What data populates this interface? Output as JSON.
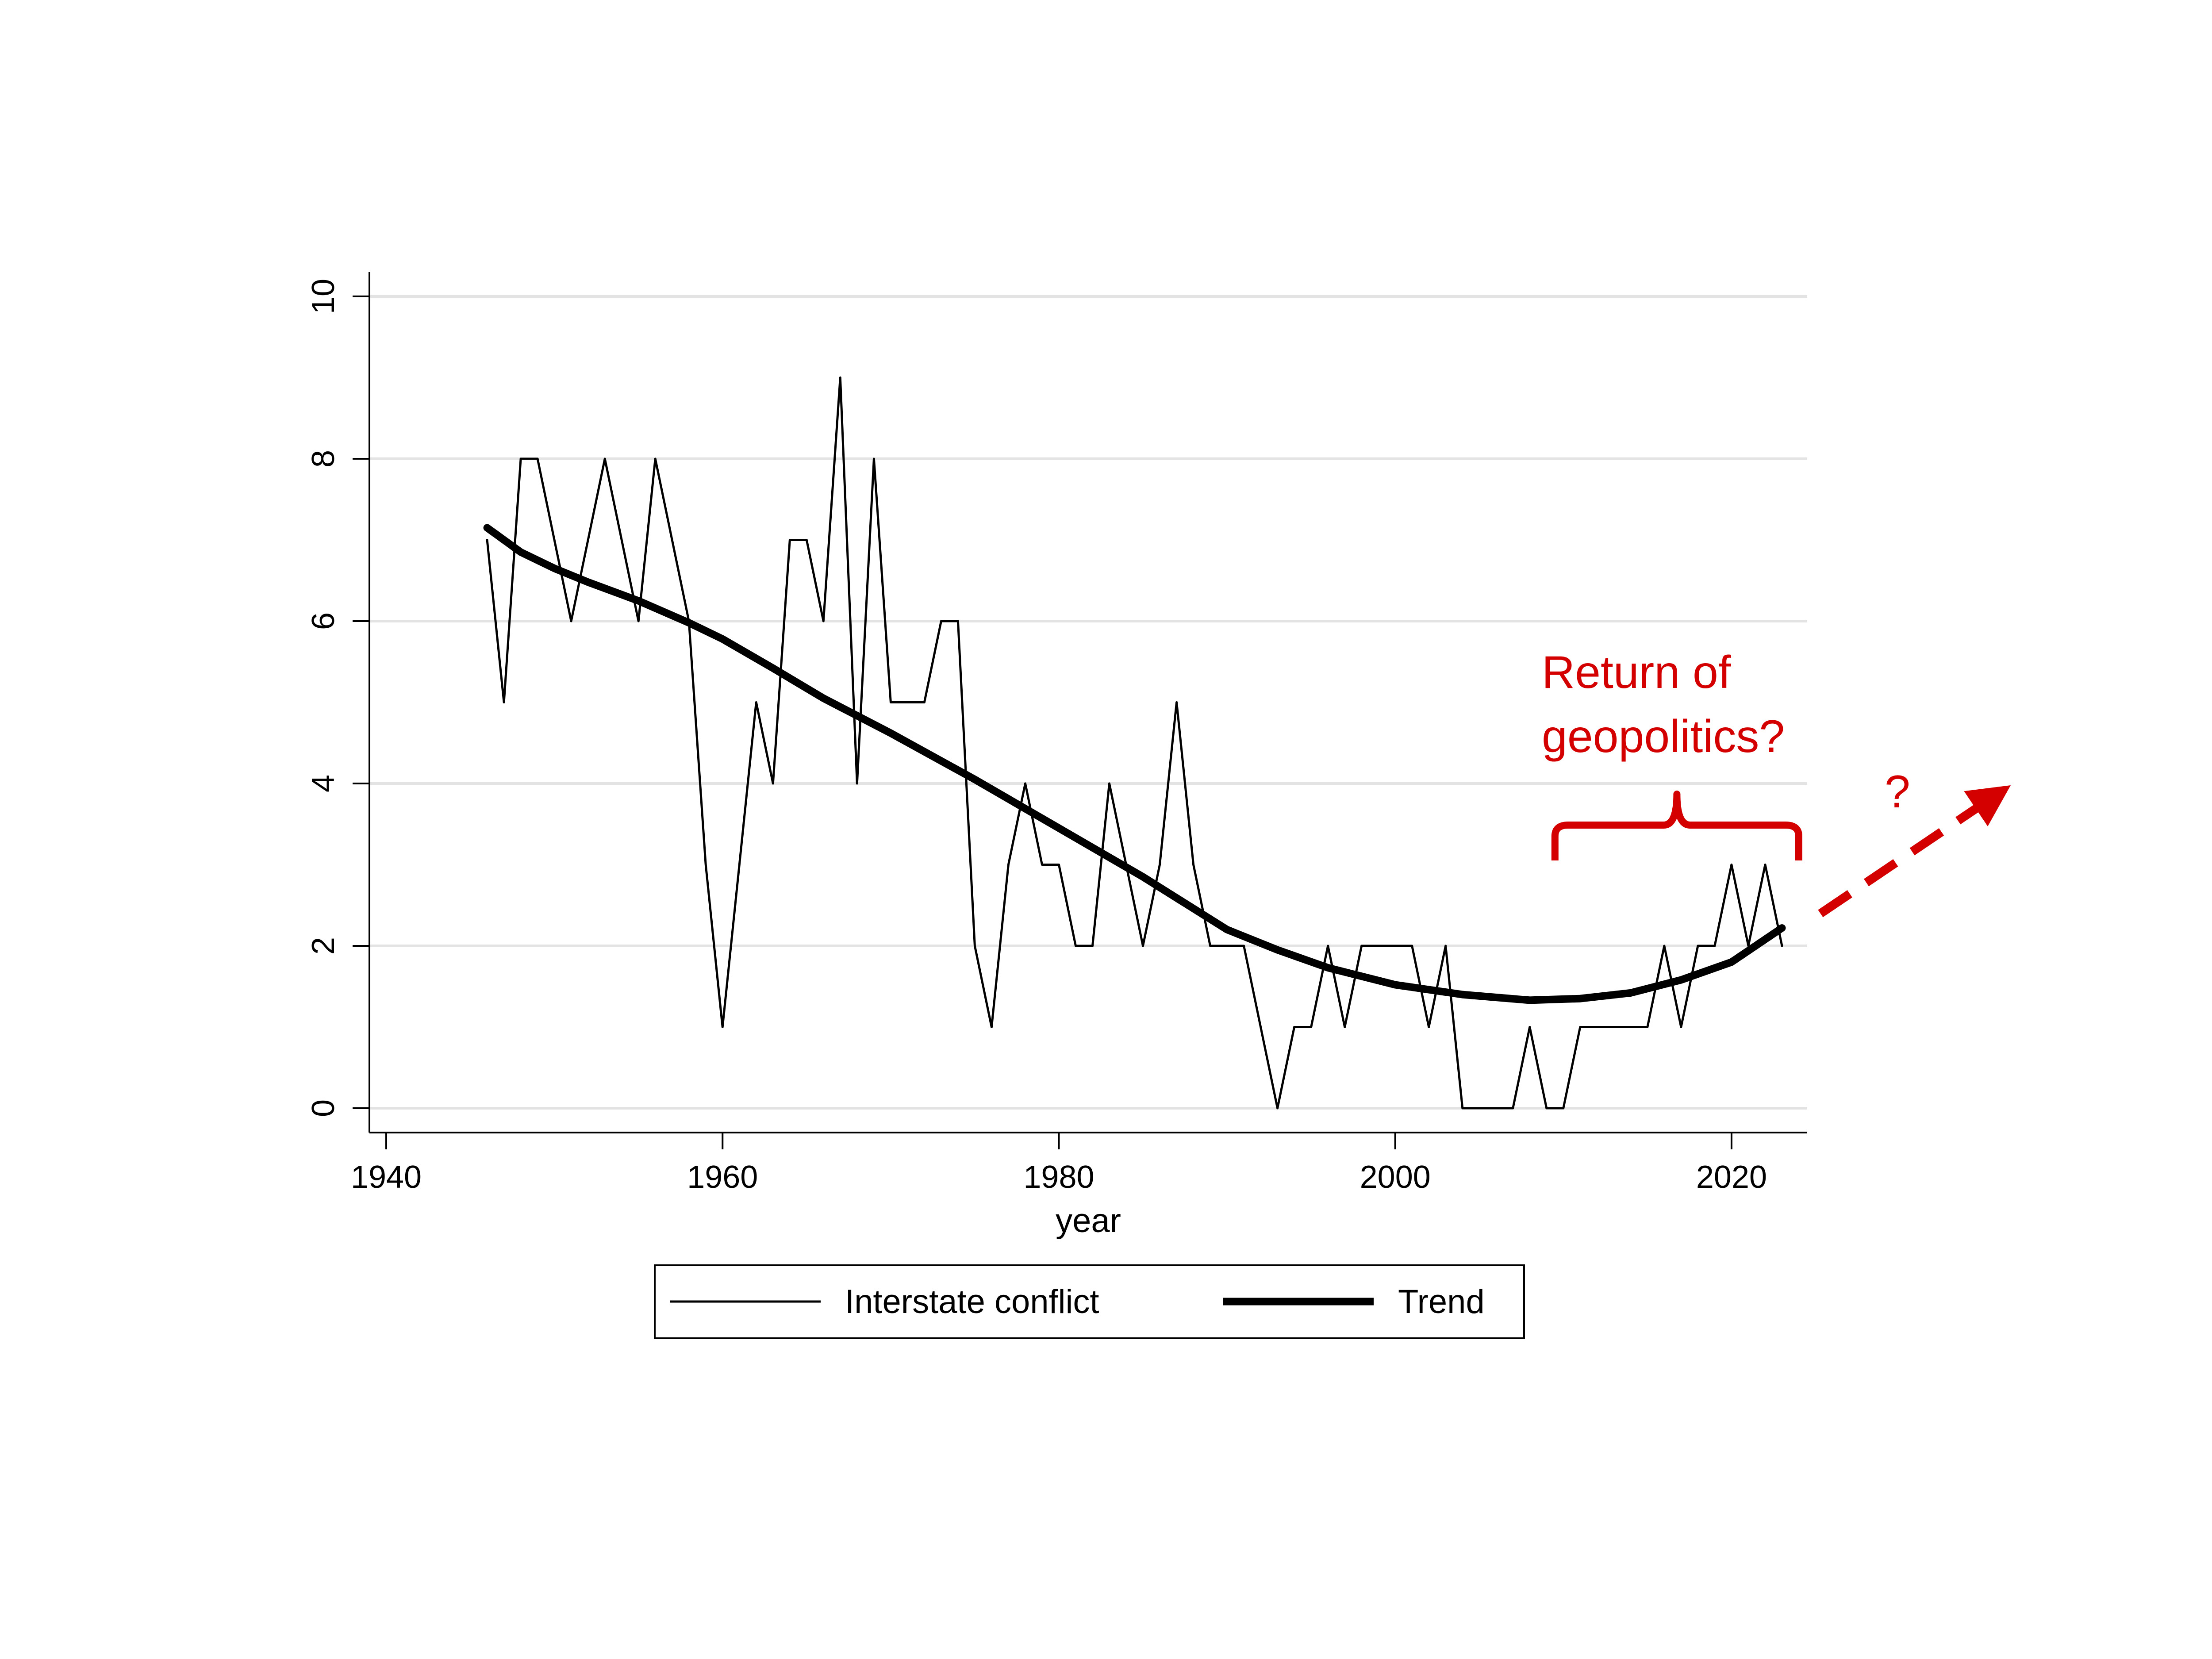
{
  "chart_data": {
    "type": "line",
    "title": "",
    "xlabel": "year",
    "ylabel": "",
    "xlim": [
      1939,
      2024.5
    ],
    "ylim": [
      -0.3,
      10.3
    ],
    "x_ticks": [
      1940,
      1960,
      1980,
      2000,
      2020
    ],
    "y_ticks": [
      0,
      2,
      4,
      6,
      8,
      10
    ],
    "grid": "horizontal",
    "legend": "bottom-center",
    "series": [
      {
        "name": "Interstate conflict",
        "style": "thin",
        "points": [
          [
            1946,
            7
          ],
          [
            1947,
            5
          ],
          [
            1948,
            8
          ],
          [
            1949,
            8
          ],
          [
            1950,
            7
          ],
          [
            1951,
            6
          ],
          [
            1952,
            7
          ],
          [
            1953,
            8
          ],
          [
            1954,
            7
          ],
          [
            1955,
            6
          ],
          [
            1956,
            8
          ],
          [
            1957,
            7
          ],
          [
            1958,
            6
          ],
          [
            1959,
            3
          ],
          [
            1960,
            1
          ],
          [
            1961,
            3
          ],
          [
            1962,
            5
          ],
          [
            1963,
            4
          ],
          [
            1964,
            7
          ],
          [
            1965,
            7
          ],
          [
            1966,
            6
          ],
          [
            1967,
            9
          ],
          [
            1968,
            4
          ],
          [
            1969,
            8
          ],
          [
            1970,
            5
          ],
          [
            1971,
            5
          ],
          [
            1972,
            5
          ],
          [
            1973,
            6
          ],
          [
            1974,
            6
          ],
          [
            1975,
            2
          ],
          [
            1976,
            1
          ],
          [
            1977,
            3
          ],
          [
            1978,
            4
          ],
          [
            1979,
            3
          ],
          [
            1980,
            3
          ],
          [
            1981,
            2
          ],
          [
            1982,
            2
          ],
          [
            1983,
            4
          ],
          [
            1984,
            3
          ],
          [
            1985,
            2
          ],
          [
            1986,
            3
          ],
          [
            1987,
            5
          ],
          [
            1988,
            3
          ],
          [
            1989,
            2
          ],
          [
            1990,
            2
          ],
          [
            1991,
            2
          ],
          [
            1992,
            1
          ],
          [
            1993,
            0
          ],
          [
            1994,
            1
          ],
          [
            1995,
            1
          ],
          [
            1996,
            2
          ],
          [
            1997,
            1
          ],
          [
            1998,
            2
          ],
          [
            1999,
            2
          ],
          [
            2000,
            2
          ],
          [
            2001,
            2
          ],
          [
            2002,
            1
          ],
          [
            2003,
            2
          ],
          [
            2004,
            0
          ],
          [
            2005,
            0
          ],
          [
            2006,
            0
          ],
          [
            2007,
            0
          ],
          [
            2008,
            1
          ],
          [
            2009,
            0
          ],
          [
            2010,
            0
          ],
          [
            2011,
            1
          ],
          [
            2012,
            1
          ],
          [
            2013,
            1
          ],
          [
            2014,
            1
          ],
          [
            2015,
            1
          ],
          [
            2016,
            2
          ],
          [
            2017,
            1
          ],
          [
            2018,
            2
          ],
          [
            2019,
            2
          ],
          [
            2020,
            3
          ],
          [
            2021,
            2
          ],
          [
            2022,
            3
          ],
          [
            2023,
            2
          ]
        ]
      },
      {
        "name": "Trend",
        "style": "thick",
        "points": [
          [
            1946,
            7.15
          ],
          [
            1948,
            6.85
          ],
          [
            1950,
            6.65
          ],
          [
            1952,
            6.48
          ],
          [
            1955,
            6.25
          ],
          [
            1958,
            5.98
          ],
          [
            1960,
            5.78
          ],
          [
            1963,
            5.42
          ],
          [
            1966,
            5.05
          ],
          [
            1970,
            4.62
          ],
          [
            1975,
            4.05
          ],
          [
            1980,
            3.45
          ],
          [
            1985,
            2.85
          ],
          [
            1990,
            2.2
          ],
          [
            1993,
            1.95
          ],
          [
            1996,
            1.73
          ],
          [
            2000,
            1.52
          ],
          [
            2004,
            1.4
          ],
          [
            2008,
            1.33
          ],
          [
            2011,
            1.35
          ],
          [
            2014,
            1.42
          ],
          [
            2017,
            1.58
          ],
          [
            2020,
            1.8
          ],
          [
            2023,
            2.22
          ]
        ]
      }
    ],
    "annotations": {
      "text_line1": "Return of",
      "text_line2": "geopolitics?",
      "question_mark": "?",
      "color": "#d40000",
      "bracket_span": [
        2009.5,
        2024
      ]
    }
  }
}
